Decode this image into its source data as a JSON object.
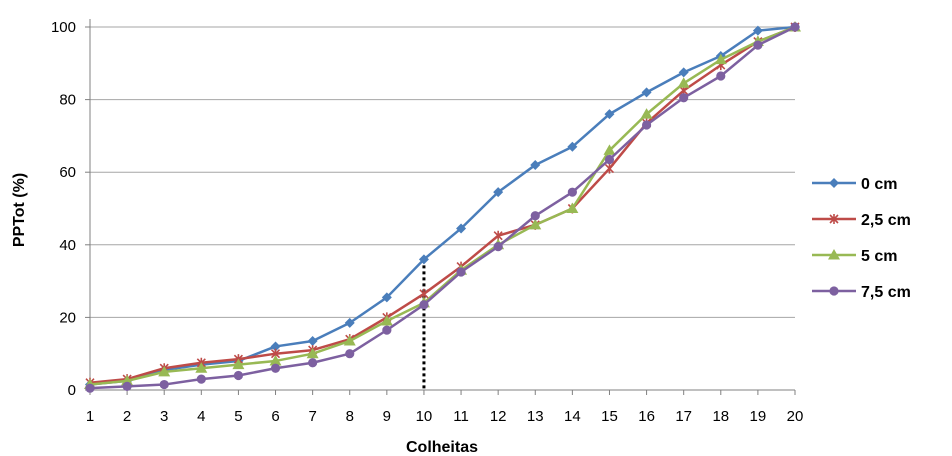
{
  "chart_data": {
    "type": "line",
    "xlabel": "Colheitas",
    "ylabel": "PPTot (%)",
    "categories": [
      "1",
      "2",
      "3",
      "4",
      "5",
      "6",
      "7",
      "8",
      "9",
      "10",
      "11",
      "12",
      "13",
      "14",
      "15",
      "16",
      "17",
      "18",
      "19",
      "20"
    ],
    "ylim": [
      0,
      100
    ],
    "yticks": [
      "0",
      "20",
      "40",
      "60",
      "80",
      "100"
    ],
    "grid": true,
    "legend_position": "right",
    "annotation": {
      "type": "vertical-dotted-line",
      "x": "10",
      "y_top": 36
    },
    "series": [
      {
        "name": "0 cm",
        "color": "#4A7EBB",
        "marker": "diamond",
        "values": [
          1.5,
          2.5,
          5.5,
          7,
          8,
          12,
          13.5,
          18.5,
          25.5,
          36,
          44.5,
          54.5,
          62,
          67,
          76,
          82,
          87.5,
          92,
          99,
          100
        ]
      },
      {
        "name": "2,5 cm",
        "color": "#BE4B48",
        "marker": "star",
        "values": [
          2,
          3,
          6,
          7.5,
          8.5,
          10,
          11,
          14,
          20,
          26.5,
          34,
          42.5,
          45.5,
          50,
          61,
          73.5,
          82.5,
          89.5,
          96,
          100
        ]
      },
      {
        "name": "5 cm",
        "color": "#98B954",
        "marker": "triangle",
        "values": [
          1.5,
          2.5,
          5,
          6,
          7,
          8,
          10,
          13.5,
          19,
          24,
          33,
          40,
          45.5,
          50,
          66,
          76,
          84.5,
          91,
          96,
          100
        ]
      },
      {
        "name": "7,5 cm",
        "color": "#7D60A0",
        "marker": "circle",
        "values": [
          0.5,
          1,
          1.5,
          3,
          4,
          6,
          7.5,
          10,
          16.5,
          23.5,
          32.5,
          39.5,
          48,
          54.5,
          63.5,
          73,
          80.5,
          86.5,
          95,
          100
        ]
      }
    ]
  }
}
